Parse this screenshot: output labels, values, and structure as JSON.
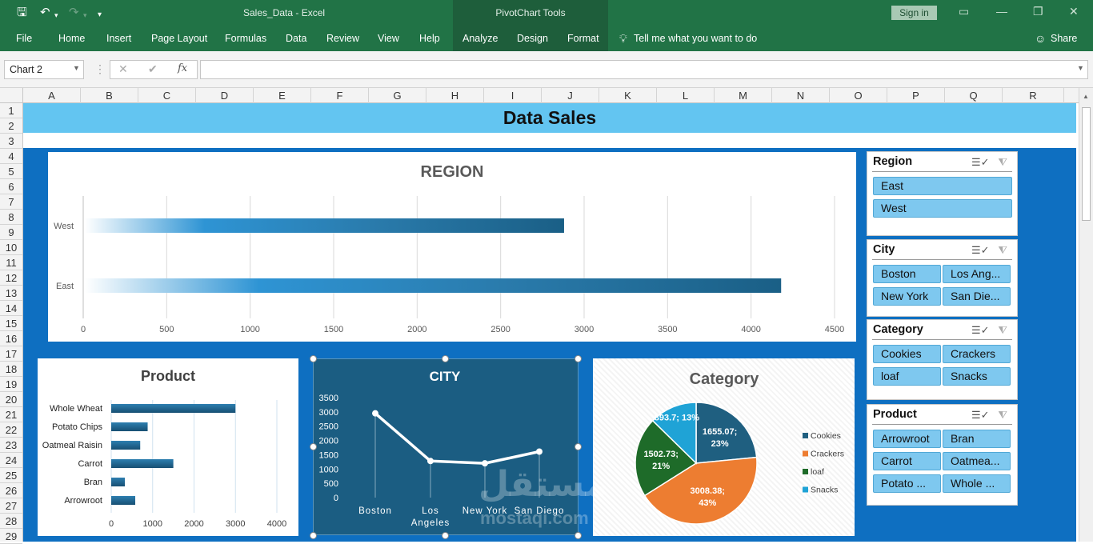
{
  "window": {
    "title": "Sales_Data  -  Excel",
    "contextual_group": "PivotChart Tools",
    "sign_in": "Sign in"
  },
  "ribbon": {
    "tabs": [
      "File",
      "Home",
      "Insert",
      "Page Layout",
      "Formulas",
      "Data",
      "Review",
      "View",
      "Help",
      "Analyze",
      "Design",
      "Format"
    ],
    "tell_me": "Tell me what you want to do",
    "share": "Share"
  },
  "formula_bar": {
    "name_box": "Chart 2",
    "formula": ""
  },
  "sheet": {
    "columns": [
      "A",
      "B",
      "C",
      "D",
      "E",
      "F",
      "G",
      "H",
      "I",
      "J",
      "K",
      "L",
      "M",
      "N",
      "O",
      "P",
      "Q",
      "R"
    ],
    "rows": [
      "1",
      "2",
      "3",
      "4",
      "5",
      "6",
      "7",
      "8",
      "9",
      "10",
      "11",
      "12",
      "13",
      "14",
      "15",
      "16",
      "17",
      "18",
      "19",
      "20",
      "21",
      "22",
      "23",
      "24",
      "25",
      "26",
      "27",
      "28",
      "29"
    ],
    "title": "Data Sales"
  },
  "slicers": {
    "region": {
      "title": "Region",
      "items": [
        "East",
        "West"
      ]
    },
    "city": {
      "title": "City",
      "items": [
        "Boston",
        "Los Ang...",
        "New York",
        "San Die..."
      ]
    },
    "category": {
      "title": "Category",
      "items": [
        "Cookies",
        "Crackers",
        "loaf",
        "Snacks"
      ]
    },
    "product": {
      "title": "Product",
      "items": [
        "Arrowroot",
        "Bran",
        "Carrot",
        "Oatmea...",
        "Potato ...",
        "Whole ..."
      ]
    }
  },
  "watermark": {
    "arabic": "مستقل",
    "latin": "mostaqi.com"
  },
  "chart_data": [
    {
      "type": "bar",
      "title": "REGION",
      "categories": [
        "West",
        "East"
      ],
      "values": [
        2880,
        4180
      ],
      "xlim": [
        0,
        4500
      ],
      "xticks": [
        0,
        500,
        1000,
        1500,
        2000,
        2500,
        3000,
        3500,
        4000,
        4500
      ],
      "grid": true,
      "color": "#1a5f86"
    },
    {
      "type": "bar",
      "title": "Product",
      "categories": [
        "Whole Wheat",
        "Potato Chips",
        "Oatmeal Raisin",
        "Carrot",
        "Bran",
        "Arrowroot"
      ],
      "values": [
        3000,
        880,
        700,
        1500,
        330,
        580
      ],
      "xlim": [
        0,
        4000
      ],
      "xticks": [
        0,
        1000,
        2000,
        3000,
        4000
      ],
      "grid": true,
      "color": "#1a5f86"
    },
    {
      "type": "line",
      "title": "CITY",
      "categories": [
        "Boston",
        "Los Angeles",
        "New York",
        "San Diego"
      ],
      "category_lines": [
        [
          "Boston"
        ],
        [
          "Los",
          "Angeles"
        ],
        [
          "New York"
        ],
        [
          "San Diego"
        ]
      ],
      "values": [
        2950,
        1280,
        1200,
        1610
      ],
      "ylim": [
        0,
        3500
      ],
      "yticks": [
        0,
        500,
        1000,
        1500,
        2000,
        2500,
        3000,
        3500
      ],
      "background": "#1b5d82"
    },
    {
      "type": "pie",
      "title": "Category",
      "legend": "right",
      "slices": [
        {
          "name": "Cookies",
          "value": 1655.07,
          "label": [
            "1655.07;",
            "23%"
          ],
          "color": "#1f5f80"
        },
        {
          "name": "Crackers",
          "value": 3008.38,
          "label": [
            "3008.38;",
            "43%"
          ],
          "color": "#ed7d31"
        },
        {
          "name": "loaf",
          "value": 1502.73,
          "label": [
            "1502.73;",
            "21%"
          ],
          "color": "#1e6b29"
        },
        {
          "name": "Snacks",
          "value": 893.7,
          "label": [
            "893.7; 13%"
          ],
          "color": "#1fa3d6"
        }
      ]
    }
  ]
}
